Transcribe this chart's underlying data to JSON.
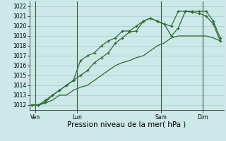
{
  "xlabel": "Pression niveau de la mer( hPa )",
  "bg_color": "#cce8e8",
  "grid_color": "#aacece",
  "line_color": "#2d6a2d",
  "vline_color": "#3a5a3a",
  "ylim": [
    1011.5,
    1022.5
  ],
  "yticks": [
    1012,
    1013,
    1014,
    1015,
    1016,
    1017,
    1018,
    1019,
    1020,
    1021,
    1022
  ],
  "xlim": [
    -0.3,
    27.5
  ],
  "day_positions": [
    0.5,
    6.5,
    18.5,
    24.5
  ],
  "day_labels": [
    "Ven",
    "Lun",
    "Sam",
    "Dim"
  ],
  "vline_positions": [
    0.5,
    6.5,
    18.5,
    24.5
  ],
  "series1_x": [
    0,
    1,
    2,
    3,
    4,
    5,
    6,
    7,
    8,
    9,
    10,
    11,
    12,
    13,
    14,
    15,
    16,
    17,
    18,
    19,
    20,
    21,
    22,
    23,
    24,
    25,
    26,
    27
  ],
  "series1_y": [
    1012.0,
    1012.0,
    1012.5,
    1013.0,
    1013.5,
    1014.0,
    1014.5,
    1015.0,
    1015.5,
    1016.3,
    1016.8,
    1017.3,
    1018.3,
    1018.8,
    1019.4,
    1019.5,
    1020.5,
    1020.8,
    1020.5,
    1020.2,
    1020.0,
    1021.5,
    1021.5,
    1021.4,
    1021.3,
    1021.0,
    1020.2,
    1018.5
  ],
  "series2_x": [
    0,
    1,
    2,
    3,
    4,
    5,
    6,
    7,
    8,
    9,
    10,
    11,
    12,
    13,
    14,
    15,
    16,
    17,
    18,
    19,
    20,
    21,
    22,
    23,
    24,
    25,
    26,
    27
  ],
  "series2_y": [
    1012.0,
    1012.0,
    1012.3,
    1013.0,
    1013.5,
    1014.0,
    1014.5,
    1016.5,
    1017.0,
    1017.3,
    1018.0,
    1018.5,
    1018.8,
    1019.5,
    1019.5,
    1020.0,
    1020.5,
    1020.8,
    1020.5,
    1020.2,
    1019.0,
    1019.8,
    1021.5,
    1021.5,
    1021.5,
    1021.5,
    1020.5,
    1018.8
  ],
  "series3_x": [
    0,
    1,
    2,
    3,
    4,
    5,
    6,
    7,
    8,
    9,
    10,
    11,
    12,
    13,
    14,
    15,
    16,
    17,
    18,
    19,
    20,
    21,
    22,
    23,
    24,
    25,
    26,
    27
  ],
  "series3_y": [
    1012.0,
    1012.0,
    1012.2,
    1012.5,
    1013.0,
    1013.0,
    1013.5,
    1013.8,
    1014.0,
    1014.5,
    1015.0,
    1015.5,
    1016.0,
    1016.3,
    1016.5,
    1016.8,
    1017.0,
    1017.5,
    1018.0,
    1018.3,
    1018.8,
    1019.0,
    1019.0,
    1019.0,
    1019.0,
    1019.0,
    1018.8,
    1018.5
  ],
  "marker": "+",
  "markersize": 3.5,
  "linewidth": 0.9,
  "xlabel_fontsize": 7.5,
  "tick_fontsize": 5.5
}
